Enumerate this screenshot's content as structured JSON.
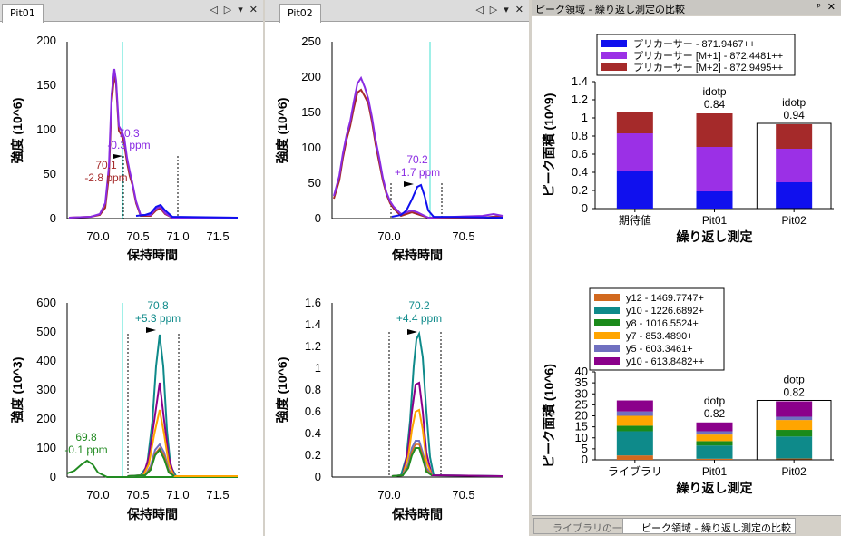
{
  "pit01": {
    "tab": "Pit01",
    "xlabel": "保持時間",
    "top": {
      "ylabel": "強度 (10^6)",
      "yticks": [
        "0",
        "50",
        "100",
        "150",
        "200"
      ],
      "xticks": [
        "70.0",
        "70.5",
        "71.0",
        "71.5"
      ],
      "ann1_rt": "70.3",
      "ann1_ppm": "-0.3 ppm",
      "ann2_rt": "70.1",
      "ann2_ppm": "-2.8 ppm"
    },
    "bottom": {
      "ylabel": "強度 (10^3)",
      "yticks": [
        "0",
        "100",
        "200",
        "300",
        "400",
        "500",
        "600"
      ],
      "xticks": [
        "70.0",
        "70.5",
        "71.0",
        "71.5"
      ],
      "ann1_rt": "70.8",
      "ann1_ppm": "+5.3 ppm",
      "ann2_rt": "69.8",
      "ann2_ppm": "-0.1 ppm"
    }
  },
  "pit02": {
    "tab": "Pit02",
    "xlabel": "保持時間",
    "top": {
      "ylabel": "強度 (10^6)",
      "yticks": [
        "0",
        "50",
        "100",
        "150",
        "200",
        "250"
      ],
      "xticks": [
        "70.0",
        "70.5"
      ],
      "ann1_rt": "70.2",
      "ann1_ppm": "+1.7 ppm"
    },
    "bottom": {
      "ylabel": "強度 (10^6)",
      "yticks": [
        "0",
        "0.2",
        "0.4",
        "0.6",
        "0.8",
        "1",
        "1.2",
        "1.4",
        "1.6"
      ],
      "xticks": [
        "70.0",
        "70.5"
      ],
      "ann1_rt": "70.2",
      "ann1_ppm": "+4.4 ppm"
    }
  },
  "right_panel": {
    "title": "ピーク領域 - 繰り返し測定の比較",
    "pin": "ᵖ",
    "close": "✕",
    "bottom_tabs": [
      "ライブラリの一致",
      "ピーク領域 - 繰り返し測定の比較"
    ]
  },
  "colors": {
    "blue": "#1010ee",
    "violet": "#8a2be2",
    "brown": "#a52a2a",
    "teal": "#0e8a8a",
    "orange": "#ffa500",
    "green": "#228b22",
    "darkorange": "#d2691e",
    "slate": "#7070c0",
    "purple": "#8b008b",
    "cyan": "#40e0d0"
  },
  "chart_data": [
    {
      "type": "bar",
      "title": "",
      "xlabel": "繰り返し測定",
      "ylabel": "ピーク面積 (10^9)",
      "ylim": [
        0,
        1.4
      ],
      "yticks": [
        "0",
        "0.2",
        "0.4",
        "0.6",
        "0.8",
        "1",
        "1.2",
        "1.4"
      ],
      "categories": [
        "期待値",
        "Pit01",
        "Pit02"
      ],
      "series": [
        {
          "name": "プリカーサー - 871.9467++",
          "color": "#1010ee",
          "values": [
            0.42,
            0.19,
            0.29
          ]
        },
        {
          "name": "プリカーサー [M+1] - 872.4481++",
          "color": "#9b30e6",
          "values": [
            0.41,
            0.49,
            0.37
          ]
        },
        {
          "name": "プリカーサー [M+2] - 872.9495++",
          "color": "#a52a2a",
          "values": [
            0.23,
            0.37,
            0.27
          ]
        }
      ],
      "annotations": [
        {
          "category": "Pit01",
          "label": "idotp",
          "value": "0.84"
        },
        {
          "category": "Pit02",
          "label": "idotp",
          "value": "0.94"
        }
      ],
      "stacked": true,
      "legend": "top"
    },
    {
      "type": "bar",
      "title": "",
      "xlabel": "繰り返し測定",
      "ylabel": "ピーク面積 (10^6)",
      "ylim": [
        0,
        40
      ],
      "yticks": [
        "0",
        "5",
        "10",
        "15",
        "20",
        "25",
        "30",
        "35",
        "40"
      ],
      "categories": [
        "ライブラリ",
        "Pit01",
        "Pit02"
      ],
      "series": [
        {
          "name": "y12 - 1469.7747+",
          "color": "#d2691e",
          "values": [
            2.0,
            0.5,
            0.6
          ]
        },
        {
          "name": "y10 - 1226.6892+",
          "color": "#0e8a8a",
          "values": [
            11.0,
            6.0,
            10.0
          ]
        },
        {
          "name": "y8 - 1016.5524+",
          "color": "#1a8a1a",
          "values": [
            2.5,
            2.0,
            3.0
          ]
        },
        {
          "name": "y7 - 853.4890+",
          "color": "#ffa500",
          "values": [
            4.5,
            3.0,
            4.5
          ]
        },
        {
          "name": "y5 - 603.3461+",
          "color": "#7070c0",
          "values": [
            2.0,
            1.5,
            1.5
          ]
        },
        {
          "name": "y10 - 613.8482++",
          "color": "#8b008b",
          "values": [
            5.0,
            4.0,
            7.0
          ]
        }
      ],
      "annotations": [
        {
          "category": "Pit01",
          "label": "dotp",
          "value": "0.82"
        },
        {
          "category": "Pit02",
          "label": "dotp",
          "value": "0.82"
        }
      ],
      "stacked": true,
      "legend": "top-left"
    }
  ]
}
